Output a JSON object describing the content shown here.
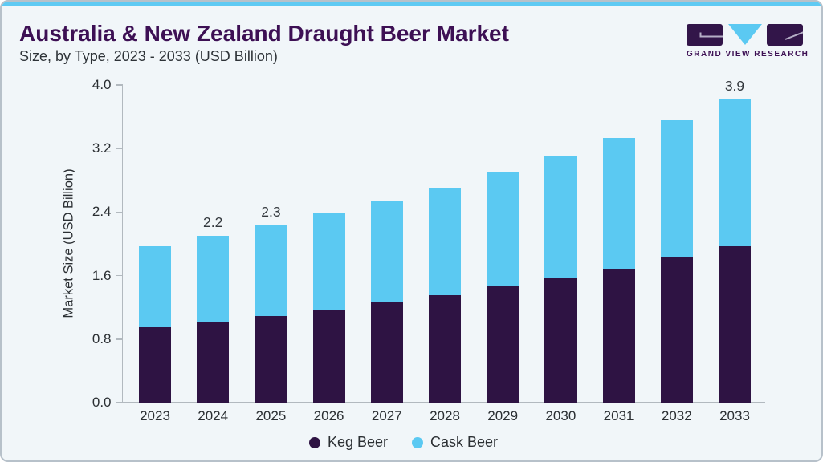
{
  "header": {
    "title": "Australia & New Zealand Draught Beer Market",
    "subtitle": "Size, by Type, 2023 - 2033 (USD Billion)"
  },
  "logo": {
    "text": "GRAND VIEW RESEARCH",
    "icon": "gvr-logo",
    "block_color": "#321549",
    "triangle_color": "#5bc9f2",
    "text_color": "#3d1054"
  },
  "colors": {
    "card_background": "#f1f6f9",
    "card_border": "#b7c1ca",
    "top_strip": "#5fcaf3",
    "title": "#3d1054",
    "axis": "#b2b9bf"
  },
  "chart_data": {
    "type": "bar",
    "stacked": true,
    "categories": [
      "2023",
      "2024",
      "2025",
      "2026",
      "2027",
      "2028",
      "2029",
      "2030",
      "2031",
      "2032",
      "2033"
    ],
    "series": [
      {
        "name": "Keg Beer",
        "color": "#2e1343",
        "values": [
          0.95,
          1.02,
          1.09,
          1.17,
          1.26,
          1.35,
          1.46,
          1.57,
          1.69,
          1.83,
          1.97
        ]
      },
      {
        "name": "Cask Beer",
        "color": "#5bc9f2",
        "values": [
          1.02,
          1.08,
          1.14,
          1.22,
          1.28,
          1.36,
          1.44,
          1.53,
          1.64,
          1.73,
          1.85
        ]
      }
    ],
    "annotations": [
      {
        "category": "2024",
        "text": "2.2"
      },
      {
        "category": "2025",
        "text": "2.3"
      },
      {
        "category": "2033",
        "text": "3.9"
      }
    ],
    "title": "Australia & New Zealand Draught Beer Market",
    "xlabel": "",
    "ylabel": "Market Size (USD Billion)",
    "yticks": [
      "0.0",
      "0.8",
      "1.6",
      "2.4",
      "3.2",
      "4.0"
    ],
    "ylim": [
      0,
      4.0
    ],
    "grid": false,
    "legend_position": "bottom",
    "legend": [
      {
        "label": "Keg Beer",
        "color": "#2e1343"
      },
      {
        "label": "Cask Beer",
        "color": "#5bc9f2"
      }
    ]
  }
}
